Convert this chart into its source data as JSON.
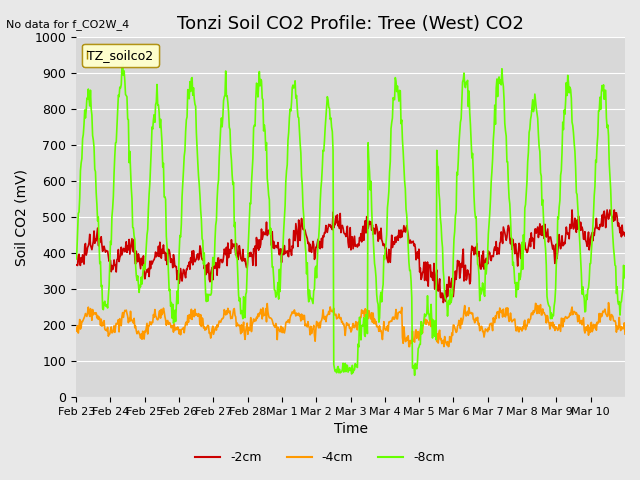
{
  "title": "Tonzi Soil CO2 Profile: Tree (West) CO2",
  "no_data_label": "No data for f_CO2W_4",
  "legend_label": "TZ_soilco2",
  "xlabel": "Time",
  "ylabel": "Soil CO2 (mV)",
  "ylim": [
    0,
    1000
  ],
  "yticks": [
    0,
    100,
    200,
    300,
    400,
    500,
    600,
    700,
    800,
    900,
    1000
  ],
  "xtick_labels": [
    "Feb 23",
    "Feb 24",
    "Feb 25",
    "Feb 26",
    "Feb 27",
    "Feb 28",
    "Mar 1",
    "Mar 2",
    "Mar 3",
    "Mar 4",
    "Mar 5",
    "Mar 6",
    "Mar 7",
    "Mar 8",
    "Mar 9",
    "Mar 10"
  ],
  "line_colors": {
    "m2cm": "#cc0000",
    "m4cm": "#ff9900",
    "m8cm": "#66ff00"
  },
  "line_labels": [
    "-2cm",
    "-4cm",
    "-8cm"
  ],
  "bg_color": "#e8e8e8",
  "plot_bg_color": "#d8d8d8",
  "title_fontsize": 13,
  "axis_fontsize": 10,
  "tick_fontsize": 9
}
